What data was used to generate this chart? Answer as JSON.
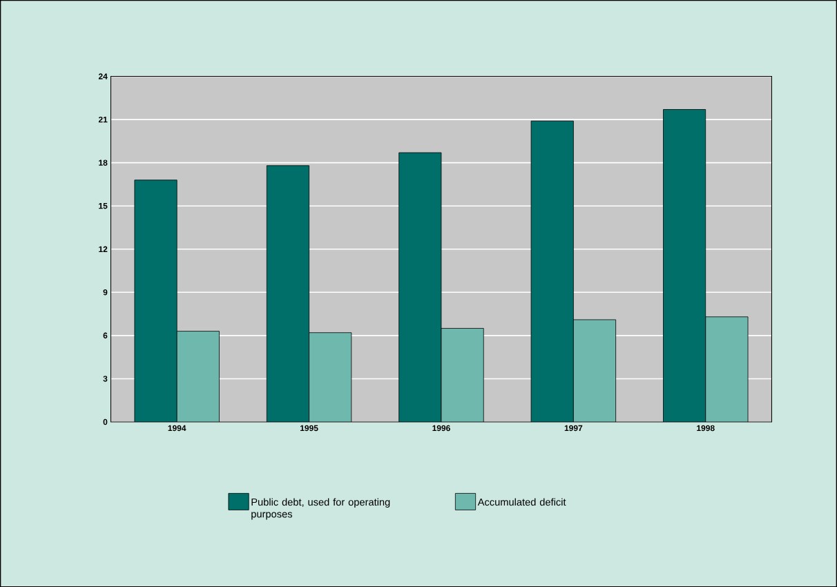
{
  "chart_data": {
    "type": "bar",
    "categories": [
      "1994",
      "1995",
      "1996",
      "1997",
      "1998"
    ],
    "series": [
      {
        "name": "Public debt, used for operating purposes",
        "color": "#006f6a",
        "values": [
          16.8,
          17.8,
          18.7,
          20.9,
          21.7
        ]
      },
      {
        "name": "Accumulated deficit",
        "color": "#6fb8ae",
        "values": [
          6.3,
          6.2,
          6.5,
          7.1,
          7.3
        ]
      }
    ],
    "ylim": [
      0,
      24
    ],
    "yticks": [
      0,
      3,
      6,
      9,
      12,
      15,
      18,
      21,
      24
    ],
    "grid": "y",
    "legend": "bottom"
  }
}
